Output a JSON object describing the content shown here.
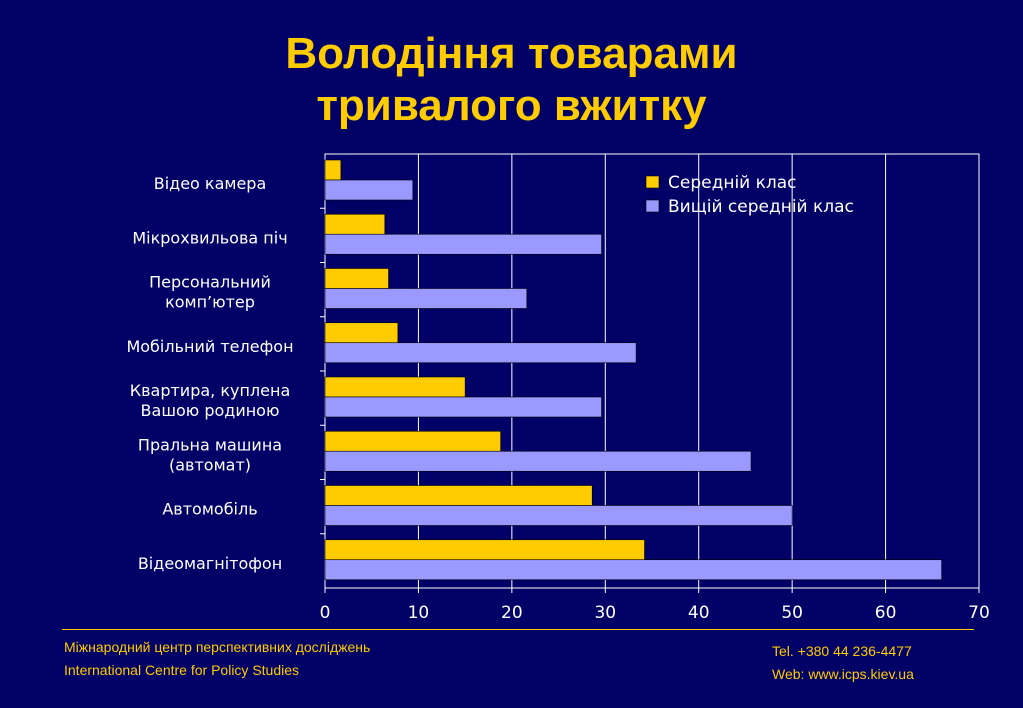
{
  "slide": {
    "title_line1": "Володіння товарами",
    "title_line2": "тривалого вжитку"
  },
  "footer": {
    "org_ua": "Міжнародний центр перспективних досліджень",
    "org_en": "International Centre for Policy Studies",
    "tel": "Tel. +380 44 236-4477",
    "web": "Web: www.icps.kiev.ua"
  },
  "colors": {
    "background": "#000066",
    "accent": "#ffcc00",
    "series_middle": "#ffcc00",
    "series_upper": "#9999ff"
  },
  "chart_data": {
    "type": "bar",
    "orientation": "horizontal",
    "categories": [
      [
        "Відео камера"
      ],
      [
        "Мікрохвильова піч"
      ],
      [
        "Персональний",
        "комп’ютер"
      ],
      [
        "Мобільний телефон"
      ],
      [
        "Квартира, куплена",
        "Вашою родиною"
      ],
      [
        "Пральна машина",
        "(автомат)"
      ],
      [
        "Автомобіль"
      ],
      [
        "Відеомагнітофон"
      ]
    ],
    "series": [
      {
        "name": "Середній клас",
        "color": "#ffcc00",
        "values": [
          1.7,
          6.4,
          6.8,
          7.8,
          15,
          18.8,
          28.6,
          34.2
        ]
      },
      {
        "name": "Вищій середній клас",
        "color": "#9999ff",
        "values": [
          9.4,
          29.6,
          21.6,
          33.3,
          29.6,
          45.6,
          50,
          66
        ]
      }
    ],
    "xlim": [
      0,
      70
    ],
    "xticks": [
      "0",
      "10",
      "20",
      "30",
      "40",
      "50",
      "60",
      "70"
    ],
    "grid": true,
    "legend_position": "top-right"
  }
}
